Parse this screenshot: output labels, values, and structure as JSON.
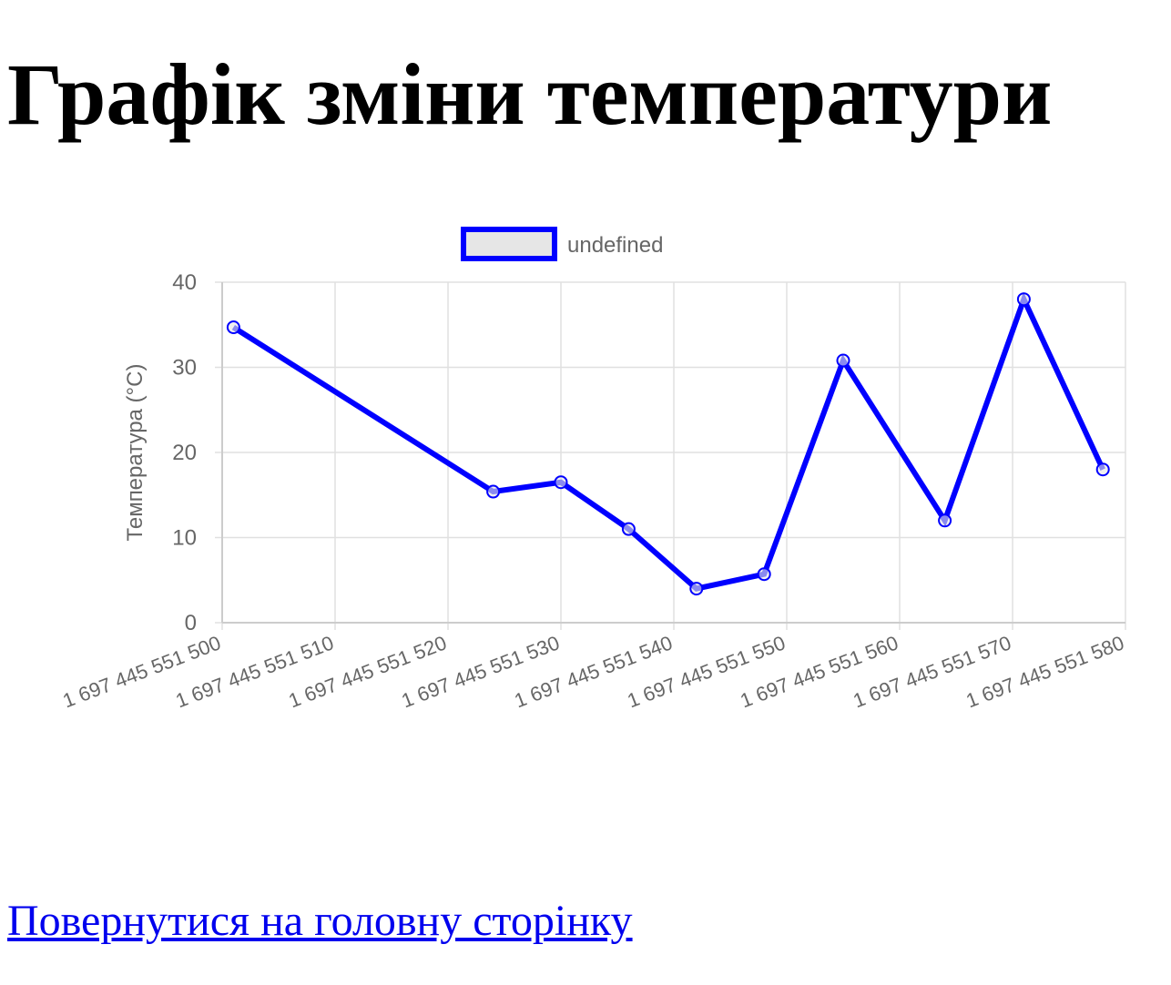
{
  "page": {
    "title": "Графік зміни температури",
    "back_link": "Повернутися на головну сторінку"
  },
  "colors": {
    "series_line": "#0000ff",
    "legend_fill": "#e6e6e6",
    "grid": "#e0e0e0",
    "axis_text": "#666666",
    "link": "#0000ee"
  },
  "chart_data": {
    "type": "line",
    "title": "",
    "ylabel": "Температура (°C)",
    "xlabel": "",
    "legend": {
      "position": "top",
      "entries": [
        "undefined"
      ]
    },
    "grid": true,
    "xlim": [
      1697445551500,
      1697445551580
    ],
    "ylim": [
      0,
      40
    ],
    "x_ticks": [
      1697445551500,
      1697445551510,
      1697445551520,
      1697445551530,
      1697445551540,
      1697445551550,
      1697445551560,
      1697445551570,
      1697445551580
    ],
    "x_tick_labels": [
      "1 697 445 551 500",
      "1 697 445 551 510",
      "1 697 445 551 520",
      "1 697 445 551 530",
      "1 697 445 551 540",
      "1 697 445 551 550",
      "1 697 445 551 560",
      "1 697 445 551 570",
      "1 697 445 551 580"
    ],
    "y_ticks": [
      0,
      10,
      20,
      30,
      40
    ],
    "y_tick_labels": [
      "0",
      "10",
      "20",
      "30",
      "40"
    ],
    "series": [
      {
        "name": "undefined",
        "x": [
          1697445551501,
          1697445551524,
          1697445551530,
          1697445551536,
          1697445551542,
          1697445551548,
          1697445551555,
          1697445551564,
          1697445551571,
          1697445551578
        ],
        "y": [
          34.7,
          15.4,
          16.5,
          11.0,
          4.0,
          5.7,
          30.8,
          12.0,
          38.0,
          18.0
        ]
      }
    ]
  }
}
